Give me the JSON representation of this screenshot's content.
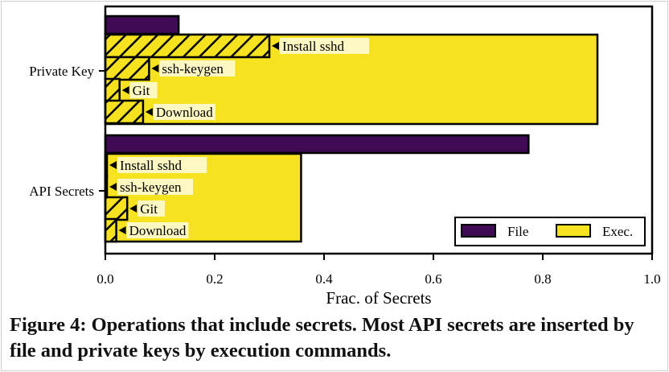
{
  "chart_data": {
    "type": "bar",
    "orientation": "horizontal",
    "categories": [
      "Private Key",
      "API Secrets"
    ],
    "series": [
      {
        "name": "File",
        "color": "#3f0a54",
        "values": [
          0.134,
          0.774
        ]
      },
      {
        "name": "Exec.",
        "color": "#f6e21f",
        "values": [
          0.9,
          0.358
        ]
      }
    ],
    "exec_breakdown": {
      "labels": [
        "Install sshd",
        "ssh-keygen",
        "Git",
        "Download"
      ],
      "hatched": true,
      "values": {
        "Private Key": [
          0.3,
          0.08,
          0.026,
          0.069
        ],
        "API Secrets": [
          0.003,
          0.003,
          0.04,
          0.02
        ]
      }
    },
    "xlabel": "Frac. of Secrets",
    "ylabel": "",
    "xlim": [
      0.0,
      1.0
    ],
    "xticks": [
      "0.0",
      "0.2",
      "0.4",
      "0.6",
      "0.8",
      "1.0"
    ],
    "grid": false,
    "legend_position": "bottom-right"
  },
  "caption": "Figure 4: Operations that include secrets. Most API secrets are inserted by file and private keys by execution commands."
}
